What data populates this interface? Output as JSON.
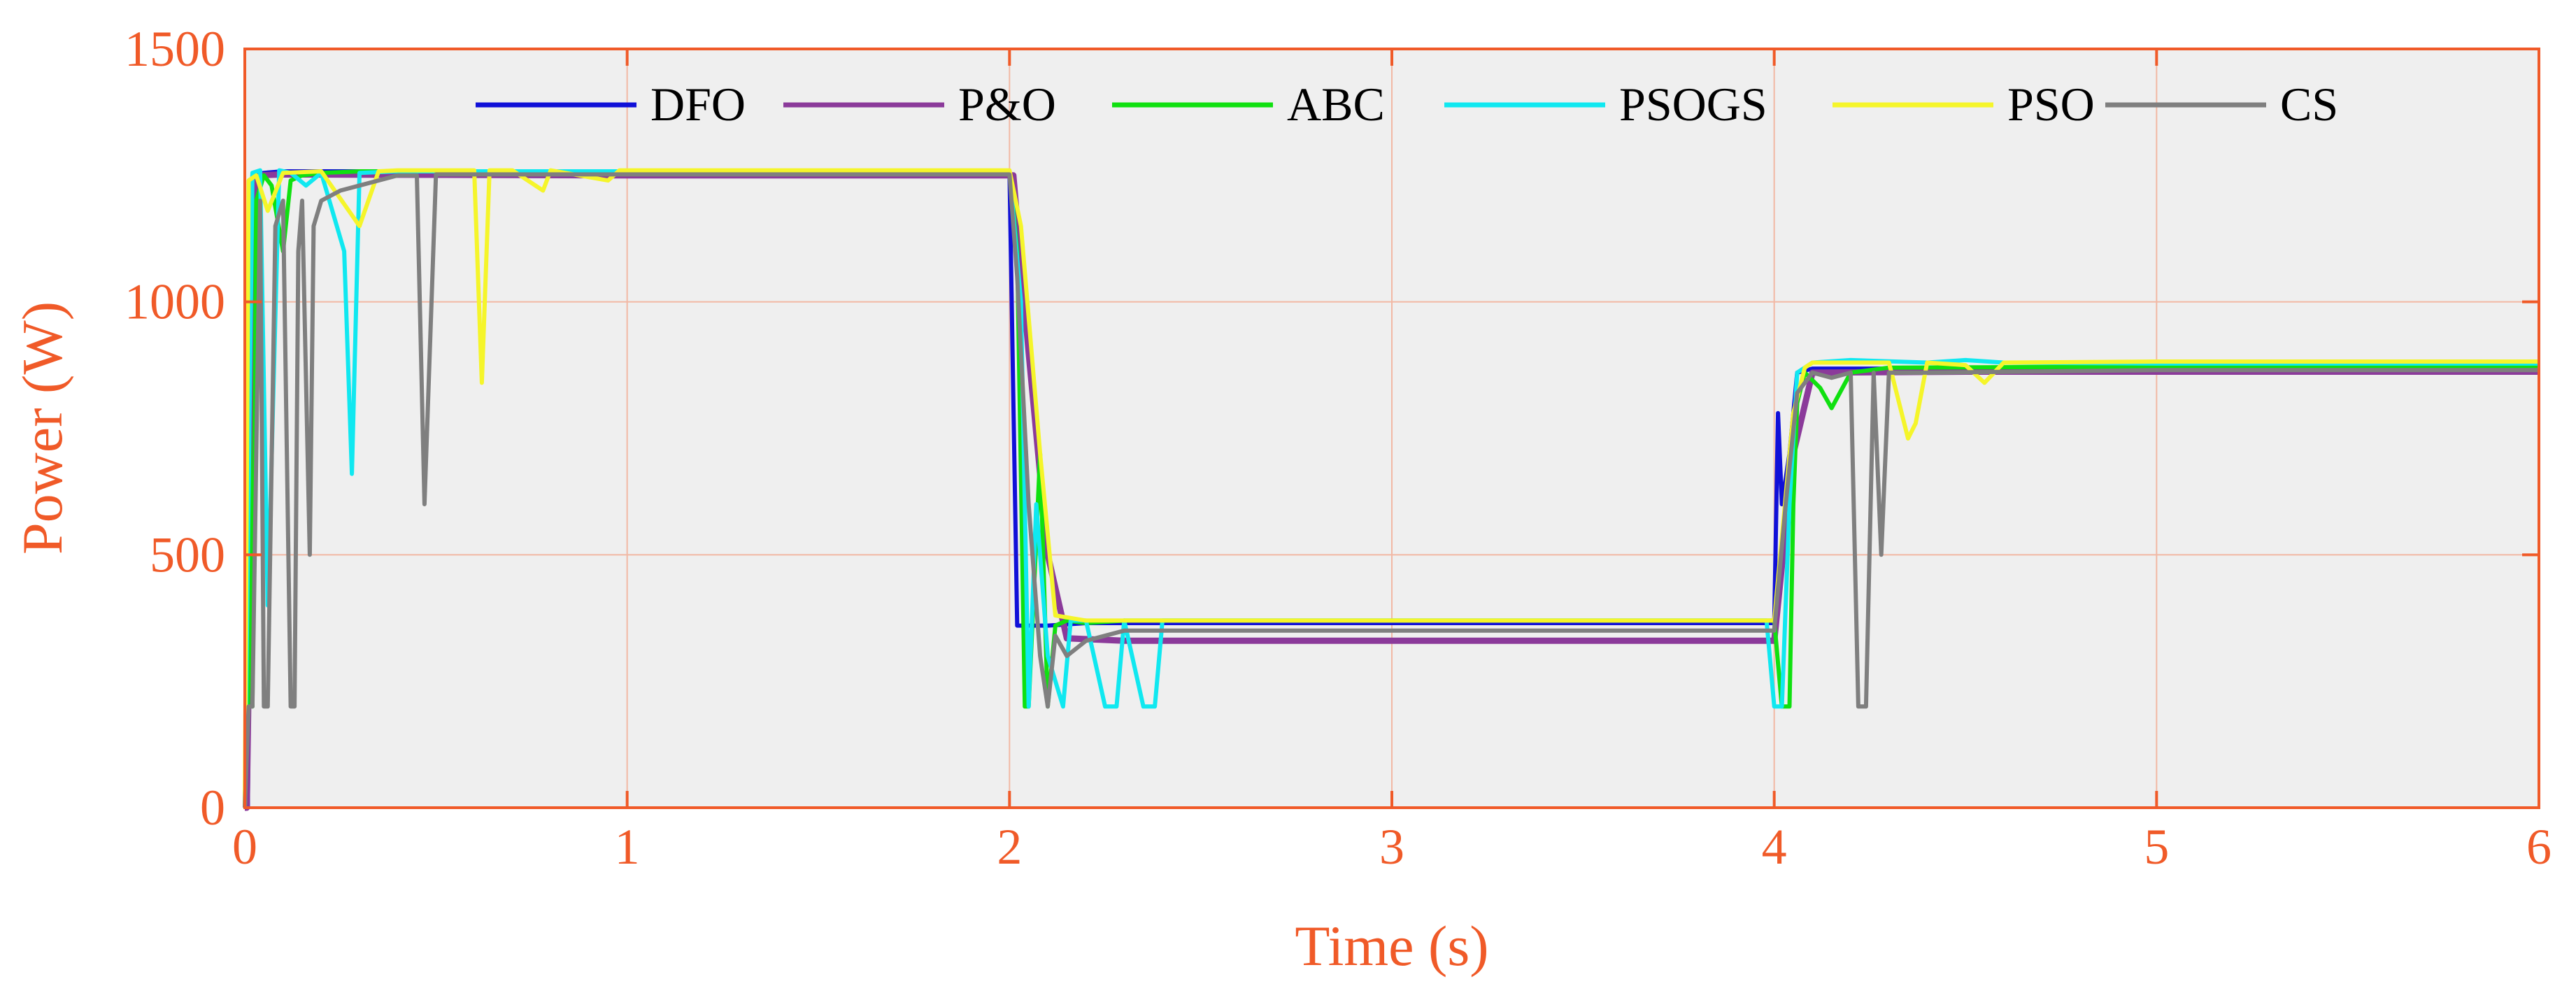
{
  "chart_data": {
    "type": "line",
    "title": "",
    "xlabel": "Time (s)",
    "ylabel": "Power (W)",
    "xlim": [
      0,
      6
    ],
    "ylim": [
      0,
      1500
    ],
    "xticks": [
      0,
      1,
      2,
      3,
      4,
      5,
      6
    ],
    "yticks": [
      0,
      500,
      1000,
      1500
    ],
    "xtick_labels": [
      "0",
      "1",
      "2",
      "3",
      "4",
      "5",
      "6"
    ],
    "ytick_labels": [
      "0",
      "500",
      "1000",
      "1500"
    ],
    "grid": true,
    "legend_position": "top",
    "colors": {
      "axis": "#f05a28",
      "grid": "#f2b8a4",
      "plot_background": "#efefef",
      "legend_text": "#000000"
    },
    "series": [
      {
        "name": "DFO",
        "color": "#1010d8",
        "x": [
          0,
          0.008,
          0.02,
          0.05,
          0.1,
          1.0,
          2.0,
          2.02,
          2.05,
          2.1,
          2.2,
          3.0,
          3.98,
          4.0,
          4.01,
          4.02,
          4.04,
          4.06,
          4.1,
          5.0,
          6.0
        ],
        "y": [
          0,
          0,
          1250,
          1255,
          1258,
          1258,
          1258,
          360,
          360,
          360,
          365,
          365,
          365,
          365,
          780,
          600,
          700,
          860,
          868,
          868,
          868
        ]
      },
      {
        "name": "P&O",
        "color": "#8b3a9a",
        "x": [
          0,
          0.005,
          0.03,
          0.1,
          1.0,
          2.0,
          2.01,
          2.05,
          2.1,
          2.15,
          2.3,
          3.0,
          3.9,
          4.0,
          4.05,
          4.1,
          4.5,
          5.0,
          6.0
        ],
        "y": [
          0,
          0,
          1250,
          1252,
          1250,
          1250,
          1250,
          900,
          500,
          335,
          330,
          330,
          330,
          330,
          700,
          860,
          862,
          862,
          862
        ]
      },
      {
        "name": "ABC",
        "color": "#10e010",
        "x": [
          0,
          0.008,
          0.012,
          0.02,
          0.03,
          0.05,
          0.07,
          0.1,
          0.12,
          0.15,
          0.2,
          0.3,
          1.0,
          2.0,
          2.02,
          2.04,
          2.05,
          2.08,
          2.1,
          2.12,
          2.15,
          2.2,
          2.3,
          3.0,
          3.95,
          4.0,
          4.02,
          4.04,
          4.05,
          4.06,
          4.08,
          4.12,
          4.15,
          4.2,
          4.3,
          5.0,
          6.0
        ],
        "y": [
          0,
          200,
          750,
          200,
          1200,
          1250,
          1230,
          1100,
          1240,
          1250,
          1255,
          1258,
          1258,
          1258,
          1100,
          200,
          200,
          700,
          200,
          360,
          370,
          365,
          370,
          370,
          370,
          370,
          200,
          200,
          600,
          800,
          860,
          830,
          790,
          860,
          870,
          872,
          872
        ]
      },
      {
        "name": "PSOGS",
        "color": "#10e8f0",
        "x": [
          0,
          0.02,
          0.04,
          0.06,
          0.09,
          0.12,
          0.16,
          0.2,
          0.26,
          0.28,
          0.3,
          0.4,
          1.0,
          2.0,
          2.03,
          2.05,
          2.07,
          2.1,
          2.14,
          2.16,
          2.2,
          2.25,
          2.28,
          2.3,
          2.35,
          2.38,
          2.4,
          3.0,
          3.98,
          4.0,
          4.02,
          4.04,
          4.06,
          4.1,
          4.2,
          4.4,
          4.5,
          4.6,
          5.0,
          6.0
        ],
        "y": [
          0,
          1255,
          1260,
          400,
          1260,
          1255,
          1230,
          1255,
          1100,
          660,
          1255,
          1258,
          1258,
          1258,
          1000,
          200,
          600,
          300,
          200,
          370,
          370,
          200,
          200,
          370,
          200,
          200,
          370,
          370,
          370,
          200,
          200,
          600,
          860,
          880,
          885,
          880,
          885,
          880,
          878,
          878
        ]
      },
      {
        "name": "PSO",
        "color": "#f5f52a",
        "x": [
          0,
          0.01,
          0.03,
          0.06,
          0.1,
          0.2,
          0.3,
          0.35,
          0.4,
          0.6,
          0.62,
          0.64,
          0.7,
          0.78,
          0.8,
          0.95,
          0.98,
          1.0,
          2.0,
          2.03,
          2.08,
          2.12,
          2.2,
          3.0,
          3.99,
          4.0,
          4.05,
          4.08,
          4.1,
          4.3,
          4.35,
          4.37,
          4.4,
          4.5,
          4.55,
          4.6,
          5.0,
          6.0
        ],
        "y": [
          0,
          1240,
          1250,
          1180,
          1255,
          1258,
          1150,
          1258,
          1260,
          1260,
          840,
          1260,
          1260,
          1220,
          1260,
          1240,
          1260,
          1260,
          1260,
          1150,
          700,
          380,
          370,
          370,
          370,
          370,
          780,
          870,
          880,
          880,
          730,
          760,
          880,
          875,
          840,
          880,
          882,
          882
        ]
      },
      {
        "name": "CS",
        "color": "#7f7f7f",
        "x": [
          0,
          0.01,
          0.02,
          0.04,
          0.05,
          0.06,
          0.08,
          0.1,
          0.12,
          0.13,
          0.14,
          0.15,
          0.17,
          0.18,
          0.2,
          0.25,
          0.3,
          0.4,
          0.45,
          0.47,
          0.5,
          1.0,
          2.0,
          2.02,
          2.05,
          2.08,
          2.1,
          2.12,
          2.15,
          2.2,
          2.3,
          3.0,
          3.98,
          4.0,
          4.03,
          4.06,
          4.1,
          4.15,
          4.2,
          4.22,
          4.24,
          4.26,
          4.28,
          4.3,
          4.4,
          5.0,
          6.0
        ],
        "y": [
          0,
          200,
          200,
          1200,
          200,
          200,
          1150,
          1200,
          200,
          200,
          1100,
          1200,
          500,
          1150,
          1200,
          1220,
          1230,
          1250,
          1250,
          600,
          1252,
          1252,
          1252,
          1050,
          600,
          300,
          200,
          340,
          300,
          330,
          350,
          350,
          350,
          350,
          600,
          820,
          860,
          850,
          860,
          200,
          200,
          860,
          500,
          860,
          860,
          865,
          865
        ]
      }
    ]
  }
}
